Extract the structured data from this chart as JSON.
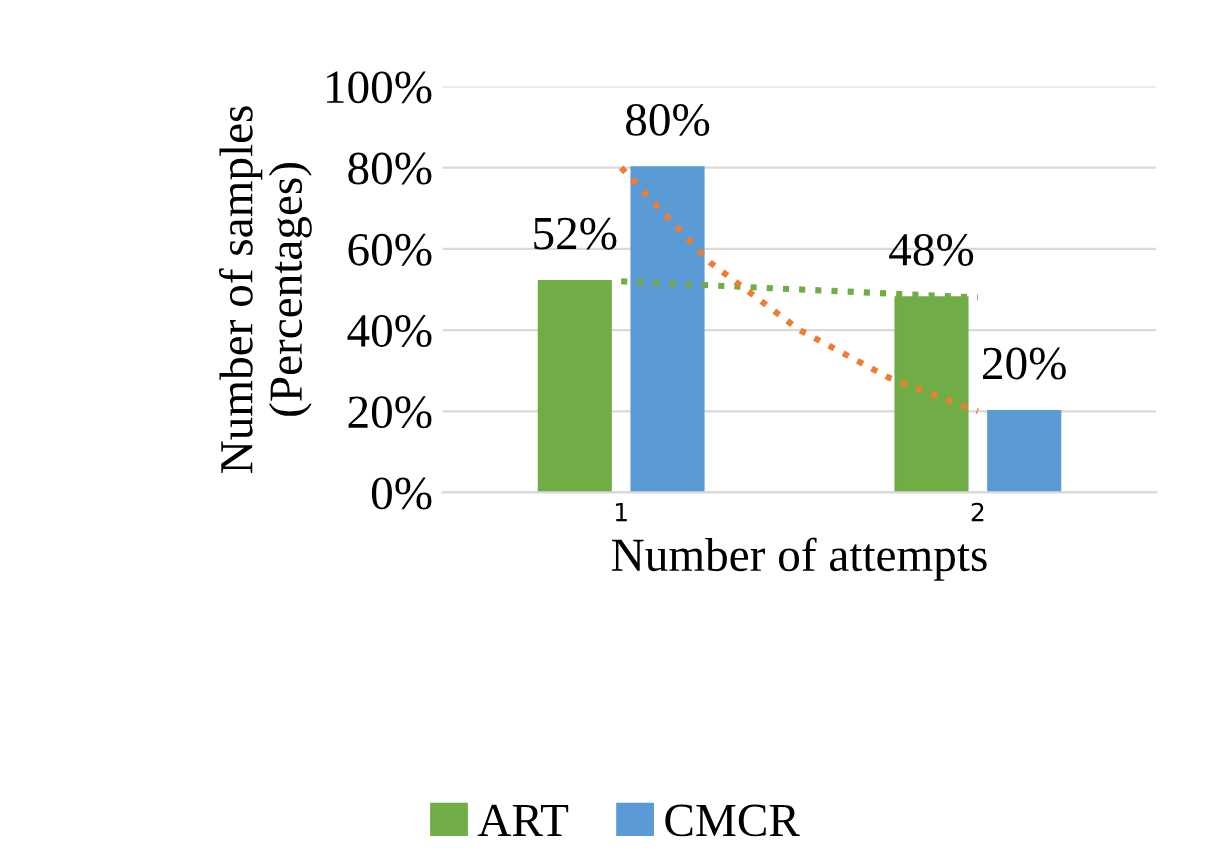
{
  "chart_data": {
    "type": "bar",
    "xlabel": "Number of attempts",
    "ylabel": "Number of samples\n(Percentages)",
    "x": [
      1,
      2
    ],
    "xlim": [
      0.5,
      2.5
    ],
    "xticks": [
      1,
      2
    ],
    "ylim": [
      0,
      100
    ],
    "yticks": [
      {
        "value": 0,
        "label": "0%"
      },
      {
        "value": 20,
        "label": "20%"
      },
      {
        "value": 40,
        "label": "40%"
      },
      {
        "value": 60,
        "label": "60%"
      },
      {
        "value": 80,
        "label": "80%"
      },
      {
        "value": 100,
        "label": "100%"
      }
    ],
    "grid": "y",
    "legend": "bottom",
    "series": [
      {
        "name": "ART",
        "color": "#70ad47",
        "values": [
          52,
          48
        ],
        "value_labels": [
          "52%",
          "48%"
        ]
      },
      {
        "name": "CMCR",
        "color": "#5b9bd5",
        "values": [
          80,
          20
        ],
        "value_labels": [
          "80%",
          "20%"
        ]
      },
      {
        "type": "line",
        "line_style": "dotted",
        "color": "#70ad47",
        "x": [
          1,
          2
        ],
        "values": [
          52,
          48
        ]
      },
      {
        "type": "line",
        "line_style": "dotted",
        "color": "#ed7d31",
        "x": [
          1,
          1.25,
          1.5,
          1.75,
          2
        ],
        "values": [
          80,
          56.6,
          40,
          28.3,
          20
        ]
      }
    ]
  }
}
